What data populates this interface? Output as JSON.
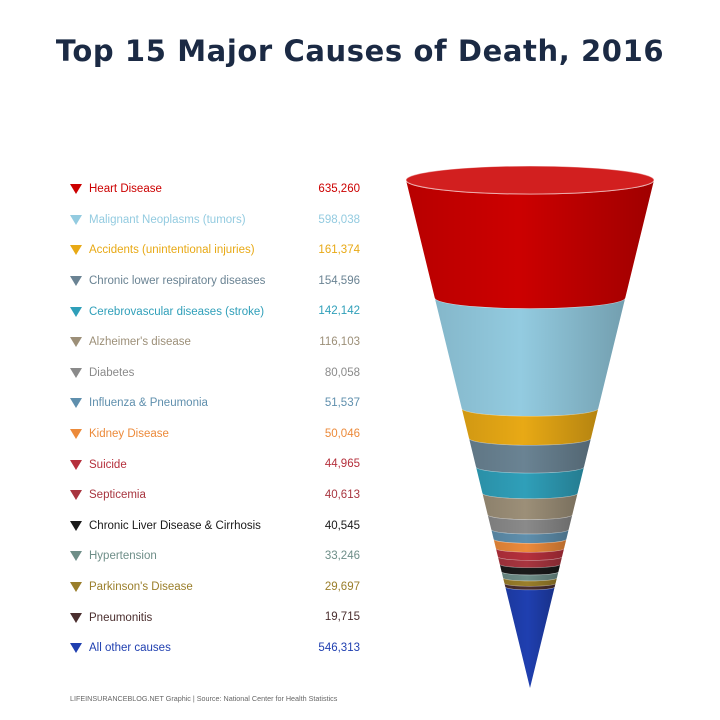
{
  "chart_data": {
    "type": "funnel",
    "title": "Top 15 Major Causes of Death, 2016",
    "legend_position": "left",
    "source": "LIFEINSURANCEBLOG.NET Graphic | Source: National Center for Health Statistics",
    "series": [
      {
        "name": "Heart Disease",
        "value": 635260,
        "label": "635,260",
        "color": "#cc0000"
      },
      {
        "name": "Malignant Neoplasms (tumors)",
        "value": 598038,
        "label": "598,038",
        "color": "#93cbe0"
      },
      {
        "name": "Accidents (unintentional injuries)",
        "value": 161374,
        "label": "161,374",
        "color": "#e8a915"
      },
      {
        "name": "Chronic lower respiratory diseases",
        "value": 154596,
        "label": "154,596",
        "color": "#6a8393"
      },
      {
        "name": "Cerebrovascular diseases (stroke)",
        "value": 142142,
        "label": "142,142",
        "color": "#2f9fb9"
      },
      {
        "name": "Alzheimer's disease",
        "value": 116103,
        "label": "116,103",
        "color": "#9c8f78"
      },
      {
        "name": "Diabetes",
        "value": 80058,
        "label": "80,058",
        "color": "#8a8a8a"
      },
      {
        "name": "Influenza & Pneumonia",
        "value": 51537,
        "label": "51,537",
        "color": "#5f8fad"
      },
      {
        "name": "Kidney Disease",
        "value": 50046,
        "label": "50,046",
        "color": "#ec8a3a"
      },
      {
        "name": "Suicide",
        "value": 44965,
        "label": "44,965",
        "color": "#b5303c"
      },
      {
        "name": "Septicemia",
        "value": 40613,
        "label": "40,613",
        "color": "#a8353f"
      },
      {
        "name": "Chronic Liver Disease & Cirrhosis",
        "value": 40545,
        "label": "40,545",
        "color": "#1a1a1a"
      },
      {
        "name": "Hypertension",
        "value": 33246,
        "label": "33,246",
        "color": "#6e8e88"
      },
      {
        "name": "Parkinson's Disease",
        "value": 29697,
        "label": "29,697",
        "color": "#9a7e2a"
      },
      {
        "name": "Pneumonitis",
        "value": 19715,
        "label": "19,715",
        "color": "#4a2e2e"
      },
      {
        "name": "All other causes",
        "value": 546313,
        "label": "546,313",
        "color": "#1f3fb0"
      }
    ]
  }
}
